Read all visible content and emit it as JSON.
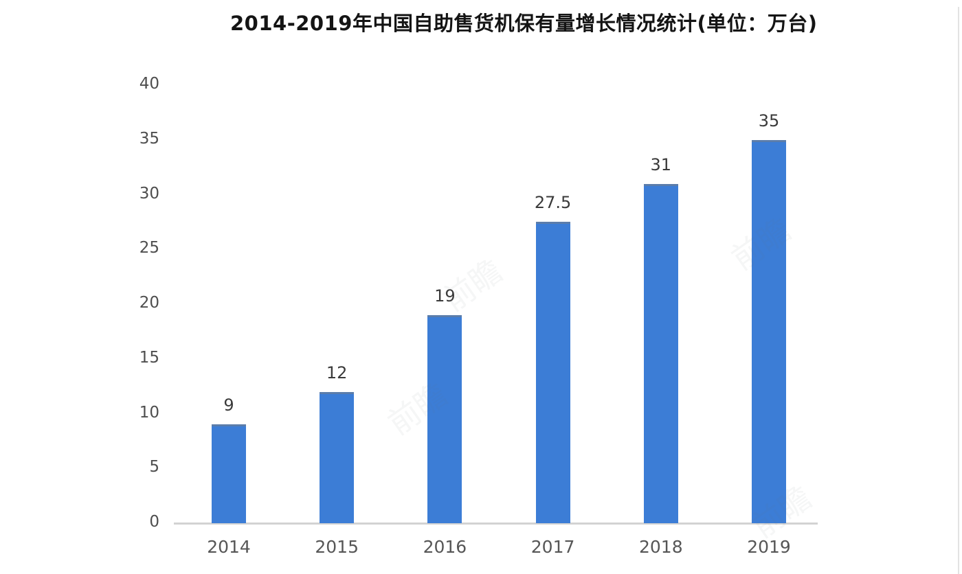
{
  "chart_data": {
    "type": "bar",
    "title": "2014-2019年中国自助售货机保有量增长情况统计(单位：万台)",
    "categories": [
      "2014",
      "2015",
      "2016",
      "2017",
      "2018",
      "2019"
    ],
    "values": [
      9,
      12,
      19,
      27.5,
      31,
      35
    ],
    "unit": "万台",
    "xlabel": "",
    "ylabel": "",
    "ylim": [
      0,
      40
    ],
    "yticks": [
      0,
      5,
      10,
      15,
      20,
      25,
      30,
      35,
      40
    ],
    "grid": false,
    "legend": false,
    "data_labels_shown": true,
    "bar_color": "#3c7dd6",
    "bar_top_edge_color": "#5b7dab",
    "axis_line_color": "#d2d2d2",
    "tick_label_color": "#4e4e4e",
    "value_label_color": "#3a3a3a",
    "title_color": "#141414",
    "background_color": "#ffffff"
  },
  "watermark": {
    "text": "前瞻"
  }
}
